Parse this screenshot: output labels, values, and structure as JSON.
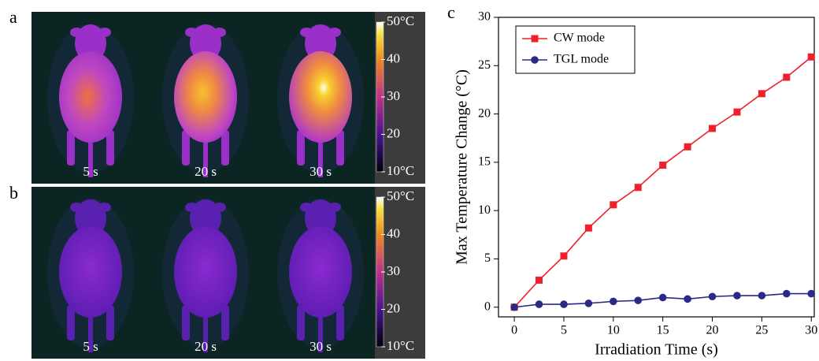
{
  "panels": [
    {
      "letter": "a",
      "images": [
        "5 s",
        "20 s",
        "30 s"
      ],
      "colorbar": {
        "lim": [
          10,
          50
        ],
        "ticks": [
          {
            "value": 50,
            "label": "50°C"
          },
          40,
          30,
          20,
          {
            "value": 10,
            "label": "10°C"
          }
        ]
      }
    },
    {
      "letter": "b",
      "images": [
        "5 s",
        "20 s",
        "30 s"
      ],
      "colorbar": {
        "lim": [
          10,
          50
        ],
        "ticks": [
          {
            "value": 50,
            "label": "50°C"
          },
          40,
          30,
          20,
          {
            "value": 10,
            "label": "10°C"
          }
        ]
      }
    }
  ],
  "chart_letter": "c",
  "chart_data": {
    "type": "line",
    "xlabel": "Irradiation Time (s)",
    "ylabel": "Max Temperature Change (°C)",
    "x": [
      0,
      2.5,
      5,
      7.5,
      10,
      12.5,
      15,
      17.5,
      20,
      22.5,
      25,
      27.5,
      30
    ],
    "series": [
      {
        "name": "CW mode",
        "color": "#f0202a",
        "marker": "square",
        "values": [
          0,
          2.8,
          5.3,
          8.2,
          10.6,
          12.4,
          14.7,
          16.6,
          18.5,
          20.2,
          22.1,
          23.8,
          25.9
        ]
      },
      {
        "name": "TGL mode",
        "color": "#2a2a86",
        "marker": "circle",
        "values": [
          0,
          0.3,
          0.3,
          0.4,
          0.6,
          0.7,
          1.0,
          0.85,
          1.1,
          1.2,
          1.2,
          1.4,
          1.4
        ]
      }
    ],
    "xlim": [
      -1.6,
      30.3
    ],
    "ylim": [
      -1,
      30
    ],
    "xticks": [
      0,
      5,
      10,
      15,
      20,
      25,
      30
    ],
    "yticks": [
      0,
      5,
      10,
      15,
      20,
      25,
      30
    ],
    "legend": "upper left"
  }
}
